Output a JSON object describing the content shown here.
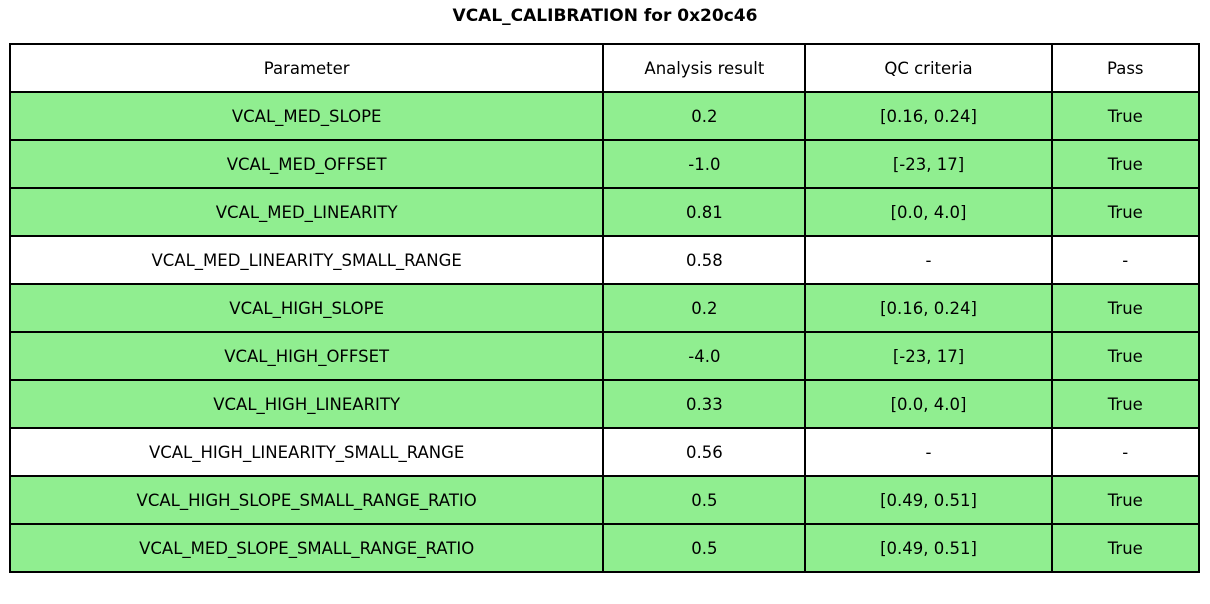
{
  "colors": {
    "pass_row_bg": "#90EE90",
    "neutral_row_bg": "#FFFFFF",
    "border": "#000000",
    "text": "#000000",
    "background": "#FFFFFF"
  },
  "chart_data": {
    "type": "table",
    "title": "VCAL_CALIBRATION for 0x20c46",
    "columns": [
      "Parameter",
      "Analysis result",
      "QC criteria",
      "Pass"
    ],
    "rows": [
      [
        "VCAL_MED_SLOPE",
        "0.2",
        "[0.16, 0.24]",
        "True"
      ],
      [
        "VCAL_MED_OFFSET",
        "-1.0",
        "[-23, 17]",
        "True"
      ],
      [
        "VCAL_MED_LINEARITY",
        "0.81",
        "[0.0, 4.0]",
        "True"
      ],
      [
        "VCAL_MED_LINEARITY_SMALL_RANGE",
        "0.58",
        "-",
        "-"
      ],
      [
        "VCAL_HIGH_SLOPE",
        "0.2",
        "[0.16, 0.24]",
        "True"
      ],
      [
        "VCAL_HIGH_OFFSET",
        "-4.0",
        "[-23, 17]",
        "True"
      ],
      [
        "VCAL_HIGH_LINEARITY",
        "0.33",
        "[0.0, 4.0]",
        "True"
      ],
      [
        "VCAL_HIGH_LINEARITY_SMALL_RANGE",
        "0.56",
        "-",
        "-"
      ],
      [
        "VCAL_HIGH_SLOPE_SMALL_RANGE_RATIO",
        "0.5",
        "[0.49, 0.51]",
        "True"
      ],
      [
        "VCAL_MED_SLOPE_SMALL_RANGE_RATIO",
        "0.5",
        "[0.49, 0.51]",
        "True"
      ]
    ],
    "row_highlight": [
      true,
      true,
      true,
      false,
      true,
      true,
      true,
      false,
      true,
      true
    ],
    "legend_position": "none",
    "grid": false
  }
}
